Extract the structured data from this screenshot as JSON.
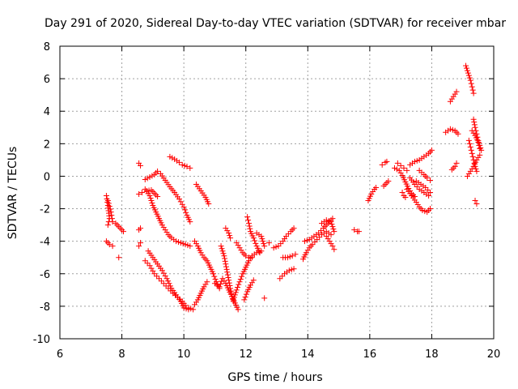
{
  "chart_data": {
    "type": "scatter",
    "title": "Day 291 of 2020, Sidereal Day-to-day VTEC variation (SDTVAR) for receiver mbar",
    "xlabel": "GPS time / hours",
    "ylabel": "SDTVAR / TECUs",
    "xlim": [
      6,
      20
    ],
    "ylim": [
      -10,
      8
    ],
    "x_ticks": [
      6,
      8,
      10,
      12,
      14,
      16,
      18,
      20
    ],
    "y_ticks": [
      -10,
      -8,
      -6,
      -4,
      -2,
      0,
      2,
      4,
      6,
      8
    ],
    "x_tick_labels": [
      "6",
      "8",
      "10",
      "12",
      "14",
      "16",
      "18",
      "20"
    ],
    "y_tick_labels": [
      "-10",
      "-8",
      "-6",
      "-4",
      "-2",
      "0",
      "2",
      "4",
      "6",
      "8"
    ],
    "grid": true,
    "marker": "+",
    "color": "#ff0000",
    "segments": [
      [
        [
          7.5,
          -1.2
        ],
        [
          7.55,
          -1.8
        ],
        [
          7.6,
          -2.6
        ],
        [
          7.55,
          -3.0
        ]
      ],
      [
        [
          7.55,
          -1.5
        ],
        [
          7.65,
          -2.2
        ],
        [
          7.7,
          -2.8
        ]
      ],
      [
        [
          7.5,
          -4.0
        ],
        [
          7.6,
          -4.2
        ],
        [
          7.7,
          -4.3
        ]
      ],
      [
        [
          7.8,
          -2.9
        ],
        [
          7.9,
          -3.1
        ],
        [
          8.0,
          -3.3
        ],
        [
          8.05,
          -3.4
        ]
      ],
      [
        [
          7.9,
          -5.0
        ]
      ],
      [
        [
          8.55,
          0.8
        ],
        [
          8.6,
          0.65
        ]
      ],
      [
        [
          8.55,
          -1.1
        ],
        [
          8.65,
          -1.0
        ]
      ],
      [
        [
          8.55,
          -3.3
        ],
        [
          8.6,
          -3.2
        ]
      ],
      [
        [
          8.55,
          -4.3
        ],
        [
          8.6,
          -4.1
        ]
      ],
      [
        [
          8.75,
          -0.2
        ],
        [
          8.9,
          -0.05
        ],
        [
          9.05,
          0.1
        ],
        [
          9.15,
          0.3
        ],
        [
          9.25,
          0.15
        ],
        [
          9.4,
          -0.25
        ],
        [
          9.55,
          -0.65
        ],
        [
          9.7,
          -1.0
        ],
        [
          9.85,
          -1.4
        ],
        [
          10.0,
          -1.9
        ],
        [
          10.1,
          -2.4
        ],
        [
          10.2,
          -2.8
        ]
      ],
      [
        [
          8.75,
          -0.8
        ],
        [
          8.9,
          -1.2
        ],
        [
          9.0,
          -1.8
        ],
        [
          9.1,
          -2.2
        ],
        [
          9.2,
          -2.6
        ],
        [
          9.3,
          -3.0
        ],
        [
          9.4,
          -3.3
        ],
        [
          9.5,
          -3.6
        ],
        [
          9.6,
          -3.8
        ],
        [
          9.75,
          -4.0
        ],
        [
          9.9,
          -4.1
        ],
        [
          10.05,
          -4.2
        ],
        [
          10.2,
          -4.3
        ]
      ],
      [
        [
          8.8,
          -0.9
        ],
        [
          8.95,
          -0.85
        ],
        [
          9.05,
          -1.05
        ],
        [
          9.15,
          -1.25
        ]
      ],
      [
        [
          8.75,
          -5.2
        ],
        [
          8.9,
          -5.5
        ],
        [
          9.05,
          -6.0
        ],
        [
          9.2,
          -6.3
        ],
        [
          9.35,
          -6.6
        ],
        [
          9.5,
          -6.9
        ],
        [
          9.65,
          -7.2
        ],
        [
          9.8,
          -7.45
        ],
        [
          9.95,
          -7.7
        ],
        [
          10.05,
          -7.95
        ],
        [
          10.15,
          -8.1
        ],
        [
          10.3,
          -8.2
        ]
      ],
      [
        [
          8.85,
          -4.6
        ],
        [
          9.0,
          -5.0
        ],
        [
          9.15,
          -5.4
        ],
        [
          9.3,
          -5.8
        ],
        [
          9.45,
          -6.3
        ],
        [
          9.6,
          -6.9
        ],
        [
          9.75,
          -7.3
        ],
        [
          9.9,
          -7.7
        ],
        [
          10.0,
          -8.1
        ],
        [
          10.15,
          -8.2
        ]
      ],
      [
        [
          9.55,
          1.2
        ],
        [
          9.7,
          1.05
        ],
        [
          9.85,
          0.85
        ],
        [
          9.95,
          0.7
        ],
        [
          10.1,
          0.6
        ],
        [
          10.2,
          0.5
        ]
      ],
      [
        [
          10.35,
          -7.9
        ],
        [
          10.45,
          -7.6
        ],
        [
          10.55,
          -7.2
        ],
        [
          10.65,
          -6.8
        ],
        [
          10.75,
          -6.5
        ]
      ],
      [
        [
          10.35,
          -4.0
        ],
        [
          10.45,
          -4.3
        ],
        [
          10.55,
          -4.7
        ],
        [
          10.65,
          -5.0
        ],
        [
          10.75,
          -5.2
        ],
        [
          10.85,
          -5.6
        ],
        [
          10.95,
          -6.0
        ],
        [
          11.05,
          -6.5
        ],
        [
          11.15,
          -6.9
        ]
      ],
      [
        [
          10.4,
          -0.5
        ],
        [
          10.55,
          -0.9
        ],
        [
          10.7,
          -1.3
        ],
        [
          10.8,
          -1.7
        ]
      ],
      [
        [
          11.0,
          -6.6
        ],
        [
          11.15,
          -6.8
        ],
        [
          11.25,
          -6.3
        ],
        [
          11.35,
          -6.6
        ],
        [
          11.45,
          -7.0
        ],
        [
          11.55,
          -7.4
        ],
        [
          11.65,
          -7.8
        ],
        [
          11.75,
          -8.2
        ]
      ],
      [
        [
          11.2,
          -4.3
        ],
        [
          11.3,
          -4.9
        ],
        [
          11.35,
          -5.4
        ],
        [
          11.4,
          -5.9
        ],
        [
          11.45,
          -6.4
        ],
        [
          11.5,
          -6.9
        ],
        [
          11.55,
          -7.4
        ],
        [
          11.6,
          -7.7
        ]
      ],
      [
        [
          11.35,
          -3.2
        ],
        [
          11.45,
          -3.5
        ],
        [
          11.5,
          -3.8
        ]
      ],
      [
        [
          11.6,
          -7.6
        ],
        [
          11.7,
          -7.0
        ],
        [
          11.8,
          -6.5
        ],
        [
          11.9,
          -6.0
        ],
        [
          12.0,
          -5.6
        ],
        [
          12.1,
          -5.2
        ],
        [
          12.2,
          -4.9
        ],
        [
          12.35,
          -4.7
        ],
        [
          12.5,
          -4.6
        ]
      ],
      [
        [
          11.7,
          -4.1
        ],
        [
          11.8,
          -4.4
        ],
        [
          11.9,
          -4.7
        ],
        [
          12.0,
          -4.9
        ],
        [
          12.1,
          -5.0
        ],
        [
          12.2,
          -5.0
        ]
      ],
      [
        [
          11.95,
          -7.6
        ],
        [
          12.05,
          -7.1
        ],
        [
          12.15,
          -6.7
        ],
        [
          12.25,
          -6.4
        ]
      ],
      [
        [
          12.05,
          -2.5
        ],
        [
          12.1,
          -2.9
        ],
        [
          12.15,
          -3.4
        ],
        [
          12.25,
          -3.8
        ],
        [
          12.35,
          -4.3
        ],
        [
          12.45,
          -4.7
        ]
      ],
      [
        [
          12.35,
          -3.5
        ],
        [
          12.5,
          -3.7
        ],
        [
          12.6,
          -4.3
        ]
      ],
      [
        [
          12.6,
          -7.5
        ]
      ],
      [
        [
          12.75,
          -4.1
        ]
      ],
      [
        [
          12.9,
          -4.4
        ],
        [
          13.05,
          -4.3
        ],
        [
          13.2,
          -4.0
        ],
        [
          13.3,
          -3.7
        ],
        [
          13.45,
          -3.4
        ],
        [
          13.55,
          -3.2
        ]
      ],
      [
        [
          13.1,
          -6.3
        ],
        [
          13.25,
          -6.0
        ],
        [
          13.4,
          -5.8
        ],
        [
          13.55,
          -5.7
        ]
      ],
      [
        [
          13.2,
          -5.0
        ],
        [
          13.35,
          -5.0
        ],
        [
          13.5,
          -4.9
        ],
        [
          13.6,
          -4.8
        ]
      ],
      [
        [
          13.85,
          -5.1
        ],
        [
          13.95,
          -4.7
        ],
        [
          14.05,
          -4.4
        ],
        [
          14.15,
          -4.2
        ],
        [
          14.3,
          -3.9
        ],
        [
          14.45,
          -3.6
        ],
        [
          14.6,
          -3.4
        ],
        [
          14.75,
          -3.6
        ]
      ],
      [
        [
          13.9,
          -4.0
        ],
        [
          14.05,
          -3.9
        ],
        [
          14.2,
          -3.7
        ],
        [
          14.35,
          -3.5
        ],
        [
          14.5,
          -3.2
        ],
        [
          14.6,
          -3.0
        ],
        [
          14.7,
          -2.8
        ],
        [
          14.8,
          -2.6
        ]
      ],
      [
        [
          14.45,
          -2.9
        ],
        [
          14.6,
          -2.7
        ],
        [
          14.75,
          -2.8
        ],
        [
          14.85,
          -3.4
        ]
      ],
      [
        [
          14.6,
          -3.7
        ],
        [
          14.7,
          -4.0
        ],
        [
          14.8,
          -4.3
        ],
        [
          14.85,
          -4.5
        ]
      ],
      [
        [
          15.5,
          -3.3
        ],
        [
          15.6,
          -3.4
        ],
        [
          15.65,
          -3.4
        ]
      ],
      [
        [
          15.95,
          -1.5
        ],
        [
          16.05,
          -1.1
        ],
        [
          16.15,
          -0.8
        ],
        [
          16.2,
          -0.7
        ]
      ],
      [
        [
          16.4,
          0.7
        ],
        [
          16.5,
          0.85
        ],
        [
          16.55,
          0.9
        ]
      ],
      [
        [
          16.45,
          -0.6
        ],
        [
          16.55,
          -0.4
        ],
        [
          16.6,
          -0.3
        ]
      ],
      [
        [
          16.8,
          0.5
        ],
        [
          16.95,
          0.35
        ],
        [
          17.05,
          0.05
        ],
        [
          17.15,
          -0.35
        ],
        [
          17.25,
          -0.75
        ],
        [
          17.35,
          -1.05
        ],
        [
          17.45,
          -1.25
        ]
      ],
      [
        [
          16.9,
          0.8
        ],
        [
          17.0,
          0.65
        ],
        [
          17.1,
          0.5
        ],
        [
          17.2,
          0.35
        ]
      ],
      [
        [
          17.05,
          -1.0
        ],
        [
          17.1,
          -1.2
        ],
        [
          17.15,
          -1.3
        ]
      ],
      [
        [
          17.2,
          -0.8
        ],
        [
          17.35,
          -1.2
        ],
        [
          17.5,
          -1.6
        ],
        [
          17.6,
          -1.9
        ],
        [
          17.7,
          -2.1
        ],
        [
          17.85,
          -2.2
        ],
        [
          17.95,
          -2.0
        ]
      ],
      [
        [
          17.3,
          0.7
        ],
        [
          17.45,
          0.9
        ],
        [
          17.6,
          1.0
        ],
        [
          17.75,
          1.2
        ],
        [
          17.9,
          1.4
        ],
        [
          18.0,
          1.6
        ]
      ],
      [
        [
          17.3,
          -0.1
        ],
        [
          17.45,
          -0.5
        ],
        [
          17.6,
          -0.8
        ],
        [
          17.75,
          -1.0
        ],
        [
          17.9,
          -1.2
        ]
      ],
      [
        [
          17.5,
          -0.3
        ],
        [
          17.65,
          -0.5
        ],
        [
          17.8,
          -0.7
        ],
        [
          17.95,
          -1.0
        ]
      ],
      [
        [
          17.6,
          0.35
        ],
        [
          17.75,
          0.1
        ],
        [
          17.85,
          -0.1
        ],
        [
          17.95,
          -0.25
        ]
      ],
      [
        [
          18.45,
          2.7
        ],
        [
          18.6,
          2.9
        ],
        [
          18.75,
          2.8
        ],
        [
          18.85,
          2.6
        ]
      ],
      [
        [
          18.6,
          4.6
        ],
        [
          18.7,
          4.9
        ],
        [
          18.8,
          5.2
        ]
      ],
      [
        [
          18.65,
          0.4
        ],
        [
          18.75,
          0.6
        ],
        [
          18.8,
          0.8
        ]
      ],
      [
        [
          19.1,
          6.8
        ],
        [
          19.15,
          6.5
        ],
        [
          19.2,
          6.2
        ],
        [
          19.25,
          5.9
        ],
        [
          19.3,
          5.5
        ],
        [
          19.35,
          5.1
        ]
      ],
      [
        [
          19.15,
          0.0
        ],
        [
          19.25,
          0.3
        ],
        [
          19.35,
          0.6
        ],
        [
          19.45,
          1.0
        ],
        [
          19.55,
          1.3
        ]
      ],
      [
        [
          19.2,
          2.2
        ],
        [
          19.25,
          1.8
        ],
        [
          19.3,
          1.4
        ],
        [
          19.35,
          1.0
        ],
        [
          19.4,
          0.6
        ],
        [
          19.45,
          0.3
        ]
      ],
      [
        [
          19.35,
          3.5
        ],
        [
          19.4,
          3.0
        ],
        [
          19.45,
          2.6
        ],
        [
          19.5,
          2.2
        ],
        [
          19.55,
          1.9
        ],
        [
          19.6,
          1.6
        ]
      ],
      [
        [
          19.3,
          2.8
        ],
        [
          19.4,
          2.5
        ],
        [
          19.5,
          2.1
        ],
        [
          19.55,
          1.7
        ]
      ],
      [
        [
          19.4,
          -1.5
        ],
        [
          19.45,
          -1.7
        ]
      ]
    ]
  }
}
